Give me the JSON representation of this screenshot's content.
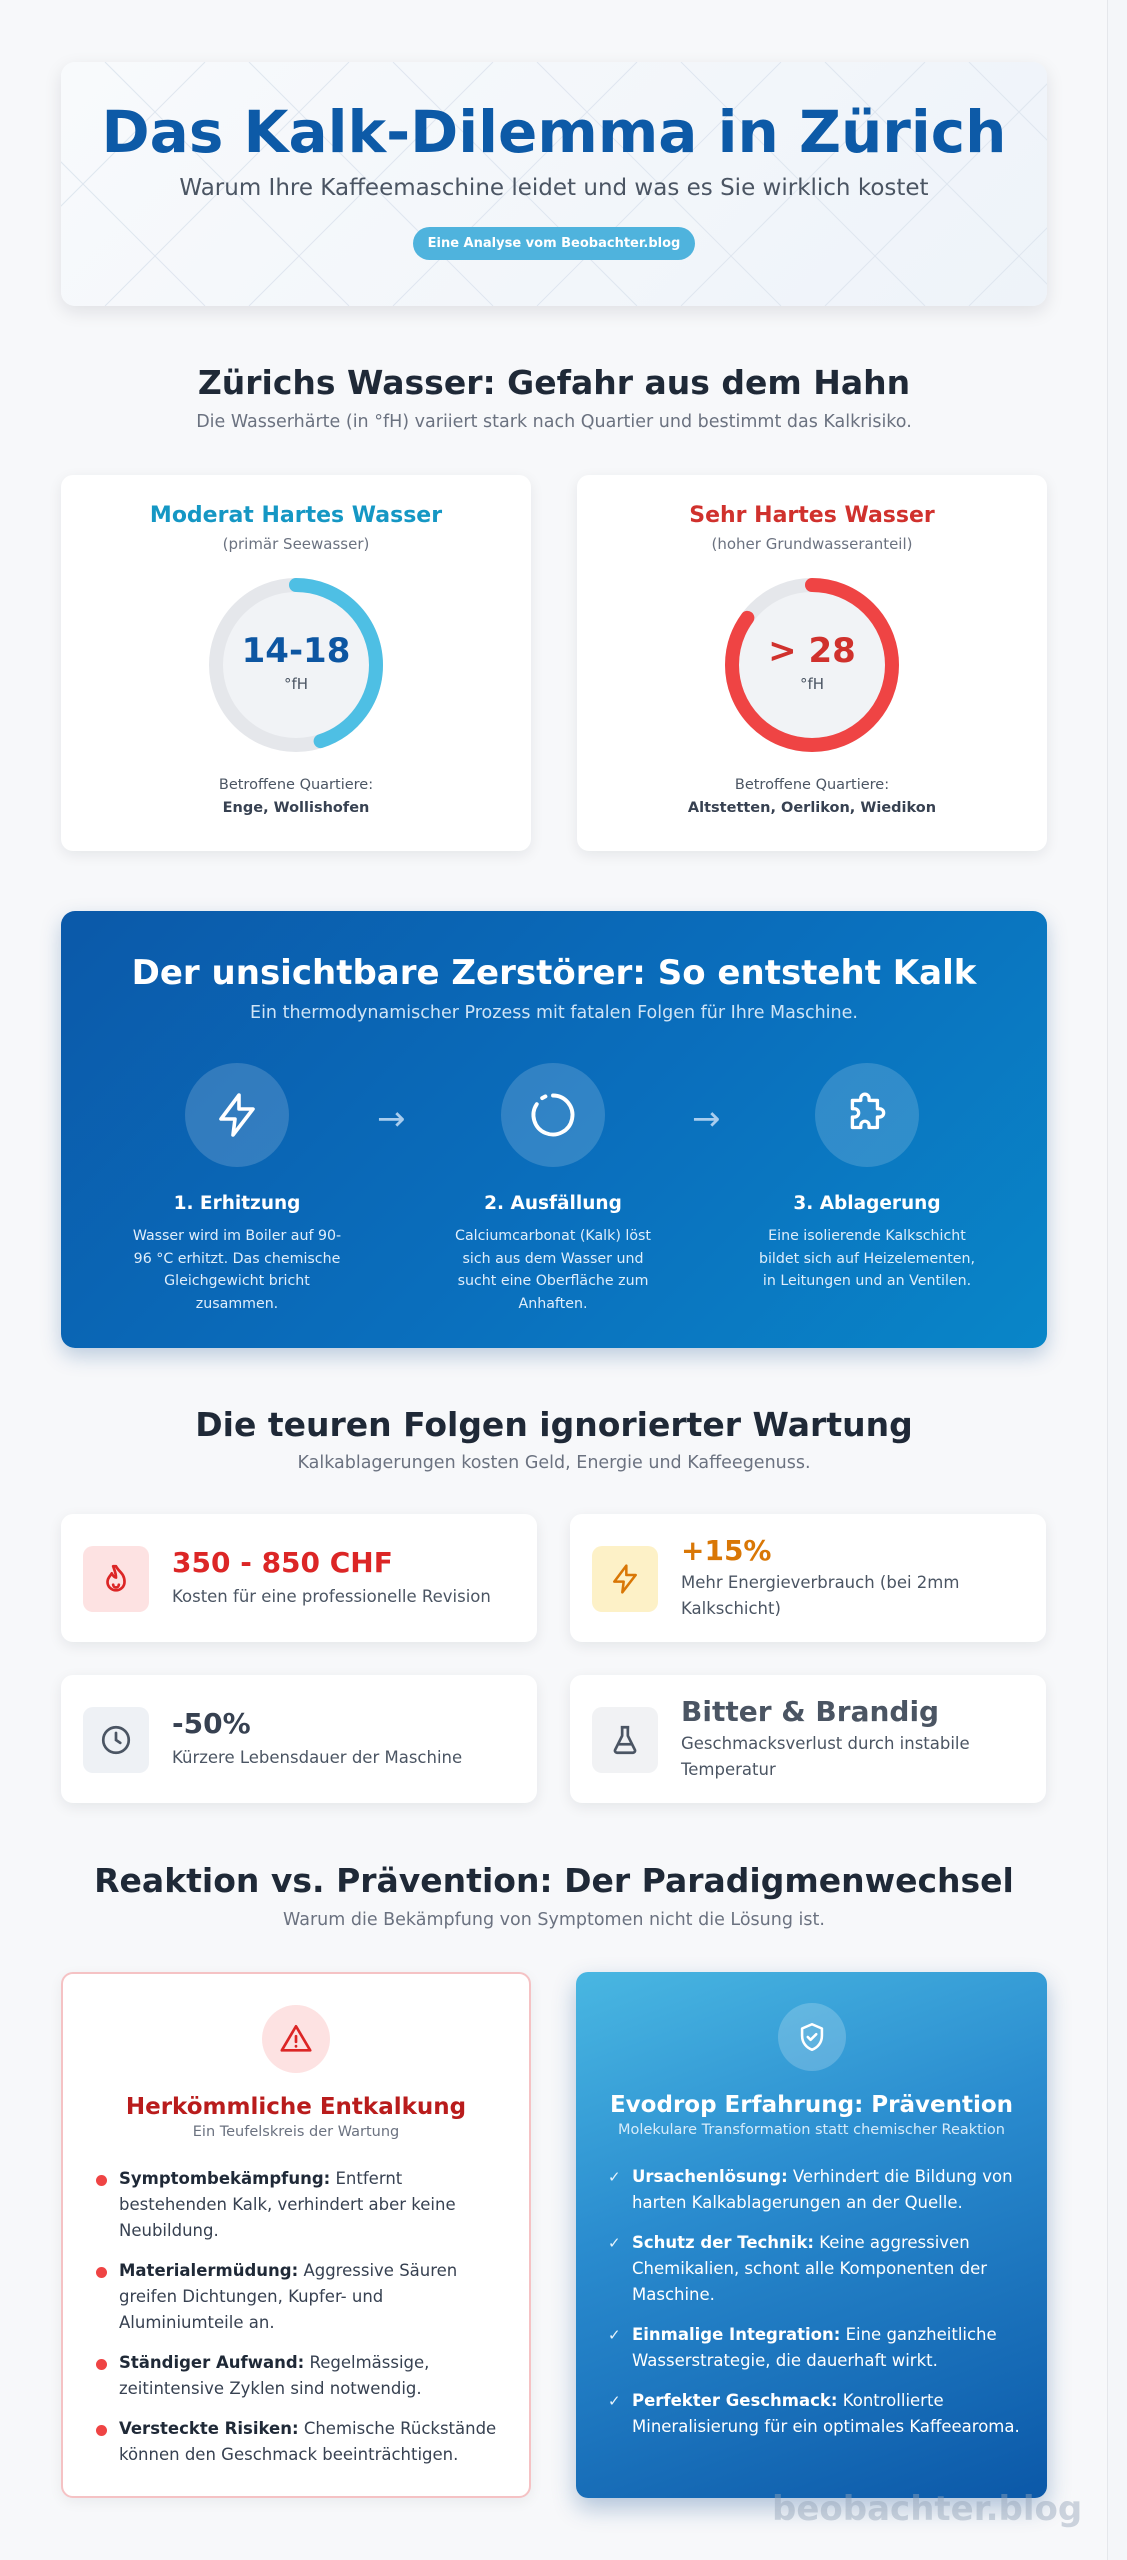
{
  "hero": {
    "title": "Das Kalk-Dilemma in Zürich",
    "subtitle": "Warum Ihre Kaffeemaschine leidet und was es Sie wirklich kostet",
    "badge": "Eine Analyse vom Beobachter.blog"
  },
  "water": {
    "title": "Zürichs Wasser: Gefahr aus dem Hahn",
    "subtitle": "Die Wasserhärte (in °fH) variiert stark nach Quartier und bestimmt das Kalkrisiko.",
    "cards": [
      {
        "heading": "Moderat Hartes Wasser",
        "note": "(primär Seewasser)",
        "value": "14-18",
        "unit": "°fH",
        "gauge_fill": 0.45,
        "color": "#1597c4",
        "gauge_color": "#4ebfe4",
        "value_color": "#0d56a2",
        "quarters_label": "Betroffene Quartiere:",
        "quarters": "Enge, Wollishofen"
      },
      {
        "heading": "Sehr Hartes Wasser",
        "note": "(hoher Grundwasseranteil)",
        "value": "> 28",
        "unit": "°fH",
        "gauge_fill": 0.85,
        "color": "#d0312d",
        "gauge_color": "#ef4444",
        "value_color": "#d0312d",
        "quarters_label": "Betroffene Quartiere:",
        "quarters": "Altstetten, Oerlikon, Wiedikon"
      }
    ]
  },
  "process": {
    "title": "Der unsichtbare Zerstörer: So entsteht Kalk",
    "subtitle": "Ein thermodynamischer Prozess mit fatalen Folgen für Ihre Maschine.",
    "steps": [
      {
        "title": "1. Erhitzung",
        "desc": "Wasser wird im Boiler auf 90-96 °C erhitzt. Das chemische Gleichgewicht bricht zusammen.",
        "icon": "lightning-icon"
      },
      {
        "title": "2. Ausfällung",
        "desc": "Calciumcarbonat (Kalk) löst sich aus dem Wasser und sucht eine Oberfläche zum Anhaften.",
        "icon": "circle-notch-icon"
      },
      {
        "title": "3. Ablagerung",
        "desc": "Eine isolierende Kalkschicht bildet sich auf Heizelementen, in Leitungen und an Ventilen.",
        "icon": "puzzle-icon"
      }
    ]
  },
  "costs": {
    "title": "Die teuren Folgen ignorierter Wartung",
    "subtitle": "Kalkablagerungen kosten Geld, Energie und Kaffeegenuss.",
    "items": [
      {
        "value": "350 - 850 CHF",
        "desc": "Kosten für eine professionelle Revision",
        "color": "#dc2626",
        "bg": "#fde2e2",
        "icon": "fire-icon"
      },
      {
        "value": "+15%",
        "desc": "Mehr Energieverbrauch (bei 2mm Kalkschicht)",
        "color": "#d97706",
        "bg": "#fdf1c7",
        "icon": "lightning-icon"
      },
      {
        "value": "-50%",
        "desc": "Kürzere Lebensdauer der Maschine",
        "color": "#374151",
        "bg": "#eef1f5",
        "icon": "clock-icon"
      },
      {
        "value": "Bitter & Brandig",
        "desc": "Geschmacksverlust durch instabile Temperatur",
        "color": "#4b5563",
        "bg": "#f1f2f4",
        "icon": "flask-icon"
      }
    ]
  },
  "compare": {
    "title": "Reaktion vs. Prävention: Der Paradigmenwechsel",
    "subtitle": "Warum die Bekämpfung von Symptomen nicht die Lösung ist.",
    "left": {
      "title": "Herkömmliche Entkalkung",
      "subtitle": "Ein Teufelskreis der Wartung",
      "items": [
        {
          "bold": "Symptombekämpfung:",
          "text": " Entfernt bestehenden Kalk, verhindert aber keine Neubildung."
        },
        {
          "bold": "Materialermüdung:",
          "text": " Aggressive Säuren greifen Dichtungen, Kupfer- und Aluminiumteile an."
        },
        {
          "bold": "Ständiger Aufwand:",
          "text": " Regelmässige, zeitintensive Zyklen sind notwendig."
        },
        {
          "bold": "Versteckte Risiken:",
          "text": " Chemische Rückstände können den Geschmack beeinträchtigen."
        }
      ]
    },
    "right": {
      "title": "Evodrop Erfahrung: Prävention",
      "subtitle": "Molekulare Transformation statt chemischer Reaktion",
      "items": [
        {
          "bold": "Ursachenlösung:",
          "text": " Verhindert die Bildung von harten Kalkablagerungen an der Quelle."
        },
        {
          "bold": "Schutz der Technik:",
          "text": " Keine aggressiven Chemikalien, schont alle Komponenten der Maschine."
        },
        {
          "bold": "Einmalige Integration:",
          "text": " Eine ganzheitliche Wasserstrategie, die dauerhaft wirkt."
        },
        {
          "bold": "Perfekter Geschmack:",
          "text": " Kontrollierte Mineralisierung für ein optimales Kaffeearoma."
        }
      ]
    }
  },
  "watermark": "beobachter.blog"
}
